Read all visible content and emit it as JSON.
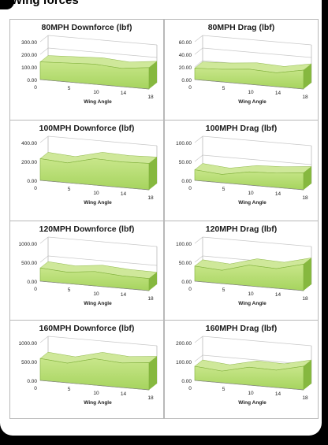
{
  "page": {
    "heading": "Wing forces"
  },
  "chart_data": [
    {
      "type": "area",
      "title": "80MPH Downforce (lbf)",
      "xlabel": "Wing Angle",
      "x": [
        0,
        5,
        10,
        14,
        18
      ],
      "x_ticks": [
        "0",
        "5",
        "10",
        "14",
        "18"
      ],
      "yticks": [
        "300.00",
        "200.00",
        "100.00",
        "0.00"
      ],
      "ylim": [
        0,
        300
      ],
      "values": [
        140,
        150,
        160,
        145,
        170
      ],
      "fill": "#a6d45e"
    },
    {
      "type": "area",
      "title": "80MPH Drag (lbf)",
      "xlabel": "Wing Angle",
      "x": [
        0,
        5,
        10,
        14,
        18
      ],
      "x_ticks": [
        "0",
        "5",
        "10",
        "14",
        "18"
      ],
      "yticks": [
        "60.00",
        "40.00",
        "20.00",
        "0.00"
      ],
      "ylim": [
        0,
        60
      ],
      "values": [
        18,
        20,
        24,
        22,
        30
      ],
      "fill": "#a6d45e"
    },
    {
      "type": "area",
      "title": "100MPH Downforce (lbf)",
      "xlabel": "Wing Angle",
      "x": [
        0,
        5,
        10,
        14,
        18
      ],
      "x_ticks": [
        "0",
        "5",
        "10",
        "14",
        "18"
      ],
      "yticks": [
        "400.00",
        "200.00",
        "0.00"
      ],
      "ylim": [
        0,
        400
      ],
      "values": [
        230,
        210,
        280,
        270,
        280
      ],
      "fill": "#a6d45e"
    },
    {
      "type": "area",
      "title": "100MPH Drag (lbf)",
      "xlabel": "Wing Angle",
      "x": [
        0,
        5,
        10,
        14,
        18
      ],
      "x_ticks": [
        "0",
        "5",
        "10",
        "14",
        "18"
      ],
      "yticks": [
        "100.00",
        "50.00",
        "0.00"
      ],
      "ylim": [
        0,
        100
      ],
      "values": [
        28,
        22,
        35,
        38,
        45
      ],
      "fill": "#a6d45e"
    },
    {
      "type": "area",
      "title": "120MPH Downforce (lbf)",
      "xlabel": "Wing Angle",
      "x": [
        0,
        5,
        10,
        14,
        18
      ],
      "x_ticks": [
        "0",
        "5",
        "10",
        "14",
        "18"
      ],
      "yticks": [
        "1000.00",
        "500.00",
        "0.00"
      ],
      "ylim": [
        0,
        1000
      ],
      "values": [
        350,
        300,
        380,
        330,
        320
      ],
      "fill": "#a6d45e"
    },
    {
      "type": "area",
      "title": "120MPH Drag (lbf)",
      "xlabel": "Wing Angle",
      "x": [
        0,
        5,
        10,
        14,
        18
      ],
      "x_ticks": [
        "0",
        "5",
        "10",
        "14",
        "18"
      ],
      "yticks": [
        "100.00",
        "50.00",
        "0.00"
      ],
      "ylim": [
        0,
        100
      ],
      "values": [
        40,
        35,
        55,
        52,
        70
      ],
      "fill": "#a6d45e"
    },
    {
      "type": "area",
      "title": "160MPH Downforce (lbf)",
      "xlabel": "Wing Angle",
      "x": [
        0,
        5,
        10,
        14,
        18
      ],
      "x_ticks": [
        "0",
        "5",
        "10",
        "14",
        "18"
      ],
      "yticks": [
        "1000.00",
        "500.00",
        "0.00"
      ],
      "ylim": [
        0,
        1000
      ],
      "values": [
        580,
        520,
        700,
        650,
        720
      ],
      "fill": "#a6d45e"
    },
    {
      "type": "area",
      "title": "160MPH Drag (lbf)",
      "xlabel": "Wing Angle",
      "x": [
        0,
        5,
        10,
        14,
        18
      ],
      "x_ticks": [
        "0",
        "5",
        "10",
        "14",
        "18"
      ],
      "yticks": [
        "200.00",
        "100.00",
        "0.00"
      ],
      "ylim": [
        0,
        200
      ],
      "values": [
        75,
        62,
        95,
        92,
        125
      ],
      "fill": "#a6d45e"
    }
  ]
}
